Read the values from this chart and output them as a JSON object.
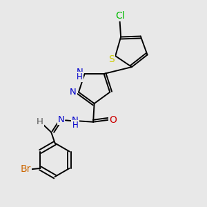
{
  "background_color": "#e8e8e8",
  "figsize": [
    3.0,
    3.0
  ],
  "dpi": 100,
  "lw": 1.4,
  "colors": {
    "black": "#000000",
    "N": "#0000cc",
    "O": "#cc0000",
    "S": "#cccc00",
    "Cl": "#00bb00",
    "Br": "#cc6600",
    "H": "#555555"
  }
}
